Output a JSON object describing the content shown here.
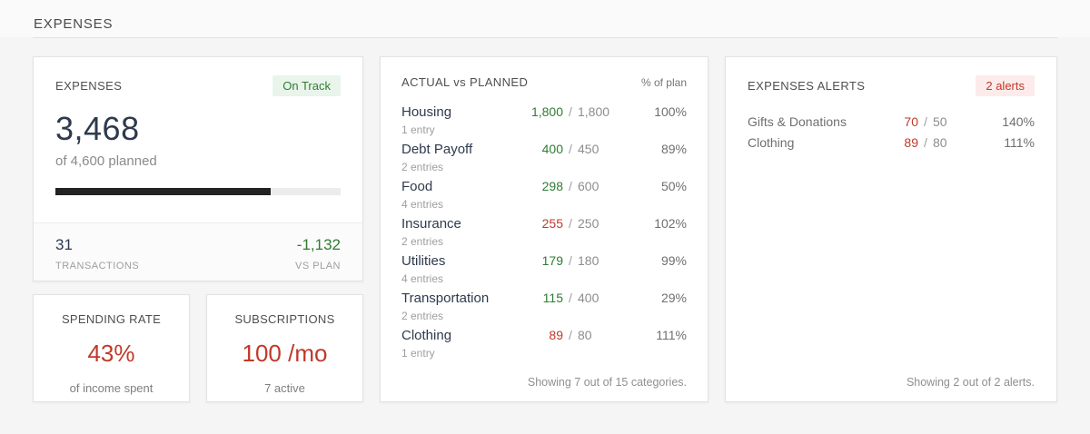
{
  "page": {
    "title": "EXPENSES"
  },
  "ui": {
    "separator": "/"
  },
  "colors": {
    "positive_green": "#2e7d32",
    "negative_red": "#c0392b",
    "dark_navy": "#2e3a4d",
    "badge_green_bg": "#e9f4eb",
    "badge_red_bg": "#fcebea",
    "progress_fill": "#232323"
  },
  "summary": {
    "title": "EXPENSES",
    "badge": "On Track",
    "total": "3,468",
    "subtitle": "of 4,600 planned",
    "progress_percent": 75.4,
    "stats": [
      {
        "value": "31",
        "label": "TRANSACTIONS",
        "status": "neutral"
      },
      {
        "value": "-1,132",
        "label": "VS PLAN",
        "status": "under"
      }
    ]
  },
  "spending_rate": {
    "title": "SPENDING RATE",
    "value": "43%",
    "caption": "of income spent"
  },
  "subscriptions": {
    "title": "SUBSCRIPTIONS",
    "value": "100 /mo",
    "caption": "7 active"
  },
  "actual_vs_planned": {
    "title": "ACTUAL vs PLANNED",
    "column_header": "% of plan",
    "rows": [
      {
        "name": "Housing",
        "actual": "1,800",
        "planned": "1,800",
        "percent": "100%",
        "entries": "1 entry",
        "status": "under"
      },
      {
        "name": "Debt Payoff",
        "actual": "400",
        "planned": "450",
        "percent": "89%",
        "entries": "2 entries",
        "status": "under"
      },
      {
        "name": "Food",
        "actual": "298",
        "planned": "600",
        "percent": "50%",
        "entries": "4 entries",
        "status": "under"
      },
      {
        "name": "Insurance",
        "actual": "255",
        "planned": "250",
        "percent": "102%",
        "entries": "2 entries",
        "status": "over"
      },
      {
        "name": "Utilities",
        "actual": "179",
        "planned": "180",
        "percent": "99%",
        "entries": "4 entries",
        "status": "under"
      },
      {
        "name": "Transportation",
        "actual": "115",
        "planned": "400",
        "percent": "29%",
        "entries": "2 entries",
        "status": "under"
      },
      {
        "name": "Clothing",
        "actual": "89",
        "planned": "80",
        "percent": "111%",
        "entries": "1 entry",
        "status": "over"
      }
    ],
    "footer": "Showing 7 out of 15 categories."
  },
  "alerts": {
    "title": "EXPENSES ALERTS",
    "badge": "2 alerts",
    "rows": [
      {
        "name": "Gifts & Donations",
        "actual": "70",
        "planned": "50",
        "percent": "140%",
        "status": "over"
      },
      {
        "name": "Clothing",
        "actual": "89",
        "planned": "80",
        "percent": "111%",
        "status": "over"
      }
    ],
    "footer": "Showing 2 out of 2 alerts."
  }
}
